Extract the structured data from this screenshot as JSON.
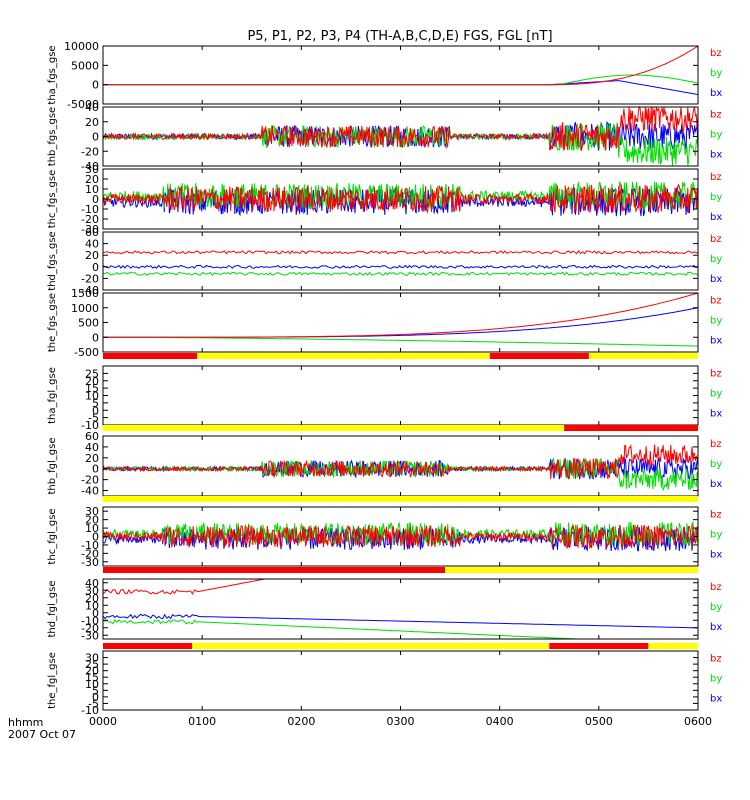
{
  "title": "P5, P1, P2, P3, P4 (TH-A,B,C,D,E) FGS, FGL [nT]",
  "colors": {
    "bx": "#0000ff",
    "by": "#00dd00",
    "bz": "#ff0000",
    "bar_red": "#ff0000",
    "bar_yellow": "#ffff00",
    "frame": "#000000"
  },
  "chart_data": {
    "type": "line",
    "x_axis": {
      "label_line1": "hhmm",
      "label_line2": "2007 Oct 07",
      "ticks": [
        "0000",
        "0100",
        "0200",
        "0300",
        "0400",
        "0500",
        "0600"
      ]
    },
    "panels": [
      {
        "ylabel": "tha_fgs_gse",
        "ylim": [
          -5000,
          10000
        ],
        "ticks": [
          -5000,
          0,
          5000,
          10000
        ],
        "tick_labels": [
          "-5000",
          "0",
          "5000",
          "10000"
        ],
        "legend": [
          "bz",
          "by",
          "bx"
        ],
        "style": "smooth"
      },
      {
        "ylabel": "thb_fgs_gse",
        "ylim": [
          -40,
          40
        ],
        "ticks": [
          -40,
          -20,
          0,
          20,
          40
        ],
        "tick_labels": [
          "-40",
          "-20",
          "0",
          "20",
          "40"
        ],
        "legend": [
          "bz",
          "by",
          "bx"
        ],
        "style": "noisy"
      },
      {
        "ylabel": "thc_fgs_gse",
        "ylim": [
          -30,
          30
        ],
        "ticks": [
          -30,
          -20,
          -10,
          0,
          10,
          20,
          30
        ],
        "tick_labels": [
          "-30",
          "-20",
          "-10",
          "0",
          "10",
          "20",
          "30"
        ],
        "legend": [
          "bz",
          "by",
          "bx"
        ],
        "style": "noisy2"
      },
      {
        "ylabel": "thd_fgs_gse",
        "ylim": [
          -40,
          60
        ],
        "ticks": [
          -40,
          -20,
          0,
          20,
          40,
          60
        ],
        "tick_labels": [
          "-40",
          "-20",
          "0",
          "20",
          "40",
          "60"
        ],
        "legend": [
          "bz",
          "by",
          "bx"
        ],
        "style": "steady"
      },
      {
        "ylabel": "the_fgs_gse",
        "ylim": [
          -500,
          1500
        ],
        "ticks": [
          -500,
          0,
          500,
          1000,
          1500
        ],
        "tick_labels": [
          "-500",
          "0",
          "500",
          "1000",
          "1500"
        ],
        "legend": [
          "bz",
          "by",
          "bx"
        ],
        "style": "smooth2"
      },
      {
        "ylabel": "tha_fgl_gse",
        "ylim": [
          -10,
          30
        ],
        "ticks": [
          -10,
          -5,
          0,
          5,
          10,
          15,
          20,
          25
        ],
        "tick_labels": [
          "-10",
          "-5",
          "0",
          "5",
          "10",
          "15",
          "20",
          "25"
        ],
        "legend": [
          "bz",
          "by",
          "bx"
        ],
        "style": "empty"
      },
      {
        "ylabel": "thb_fgl_gse",
        "ylim": [
          -50,
          60
        ],
        "ticks": [
          -40,
          -20,
          0,
          20,
          40,
          60
        ],
        "tick_labels": [
          "-40",
          "-20",
          "0",
          "20",
          "40",
          "60"
        ],
        "legend": [
          "bz",
          "by",
          "bx"
        ],
        "style": "noisy"
      },
      {
        "ylabel": "thc_fgl_gse",
        "ylim": [
          -35,
          35
        ],
        "ticks": [
          -30,
          -20,
          -10,
          0,
          10,
          20,
          30
        ],
        "tick_labels": [
          "-30",
          "-20",
          "-10",
          "0",
          "10",
          "20",
          "30"
        ],
        "legend": [
          "bz",
          "by",
          "bx"
        ],
        "style": "noisy2"
      },
      {
        "ylabel": "thd_fgl_gse",
        "ylim": [
          -35,
          45
        ],
        "ticks": [
          -30,
          -20,
          -10,
          0,
          10,
          20,
          30,
          40
        ],
        "tick_labels": [
          "-30",
          "-20",
          "-10",
          "0",
          "10",
          "20",
          "30",
          "40"
        ],
        "legend": [
          "bz",
          "by",
          "bx"
        ],
        "style": "decay"
      },
      {
        "ylabel": "the_fgl_gse",
        "ylim": [
          -10,
          35
        ],
        "ticks": [
          -10,
          -5,
          0,
          5,
          10,
          15,
          20,
          25,
          30
        ],
        "tick_labels": [
          "-10",
          "-5",
          "0",
          "5",
          "10",
          "15",
          "20",
          "25",
          "30"
        ],
        "legend": [
          "bz",
          "by",
          "bx"
        ],
        "style": "empty"
      }
    ],
    "mode_bars": [
      {
        "after_panel": 4,
        "segments": [
          [
            0,
            0.95,
            "red"
          ],
          [
            0.95,
            3.9,
            "yellow"
          ],
          [
            3.9,
            4.9,
            "red"
          ],
          [
            4.9,
            6,
            "yellow"
          ]
        ]
      },
      {
        "after_panel": 5,
        "segments": [
          [
            0,
            4.65,
            "yellow"
          ],
          [
            4.65,
            6,
            "red"
          ]
        ]
      },
      {
        "after_panel": 6,
        "segments": [
          [
            0,
            6,
            "yellow"
          ]
        ]
      },
      {
        "after_panel": 7,
        "segments": [
          [
            0,
            3.45,
            "red"
          ],
          [
            3.45,
            6,
            "yellow"
          ]
        ]
      },
      {
        "after_panel": 8,
        "segments": [
          [
            0,
            0.9,
            "red"
          ],
          [
            0.9,
            4.5,
            "yellow"
          ],
          [
            4.5,
            5.5,
            "red"
          ],
          [
            5.5,
            6,
            "yellow"
          ]
        ]
      }
    ]
  }
}
